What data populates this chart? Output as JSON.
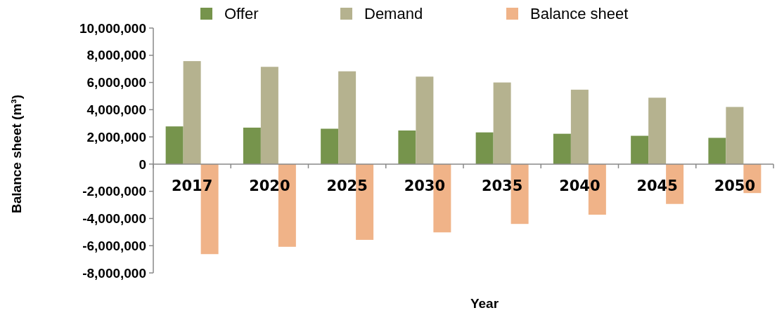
{
  "chart_data": {
    "type": "bar",
    "xlabel": "Year",
    "ylabel": "Balance sheet (m³)",
    "categories": [
      "2017",
      "2020",
      "2025",
      "2030",
      "2035",
      "2040",
      "2045",
      "2050"
    ],
    "series": [
      {
        "name": "Offer",
        "color": "#76944c",
        "values": [
          2770000,
          2680000,
          2600000,
          2470000,
          2330000,
          2230000,
          2080000,
          1930000
        ]
      },
      {
        "name": "Demand",
        "color": "#b5b28f",
        "values": [
          7570000,
          7150000,
          6820000,
          6430000,
          6000000,
          5470000,
          4880000,
          4200000
        ]
      },
      {
        "name": "Balance sheet",
        "color": "#f0b388",
        "values": [
          -6620000,
          -6080000,
          -5570000,
          -5020000,
          -4400000,
          -3720000,
          -2930000,
          -2130000
        ]
      }
    ],
    "ylim": [
      -8000000,
      10000000
    ],
    "yticks": [
      {
        "value": -8000000,
        "label": "-8,000,000"
      },
      {
        "value": -6000000,
        "label": "-6,000,000"
      },
      {
        "value": -4000000,
        "label": "-4,000,000"
      },
      {
        "value": -2000000,
        "label": "-2,000,000"
      },
      0,
      {
        "value": 2000000,
        "label": "2,000,000"
      },
      {
        "value": 4000000,
        "label": "4,000,000"
      },
      {
        "value": 6000000,
        "label": "6,000,000"
      },
      {
        "value": 8000000,
        "label": "8,000,000"
      },
      {
        "value": 10000000,
        "label": "10,000,000"
      }
    ],
    "legend": "top",
    "grid": false
  }
}
